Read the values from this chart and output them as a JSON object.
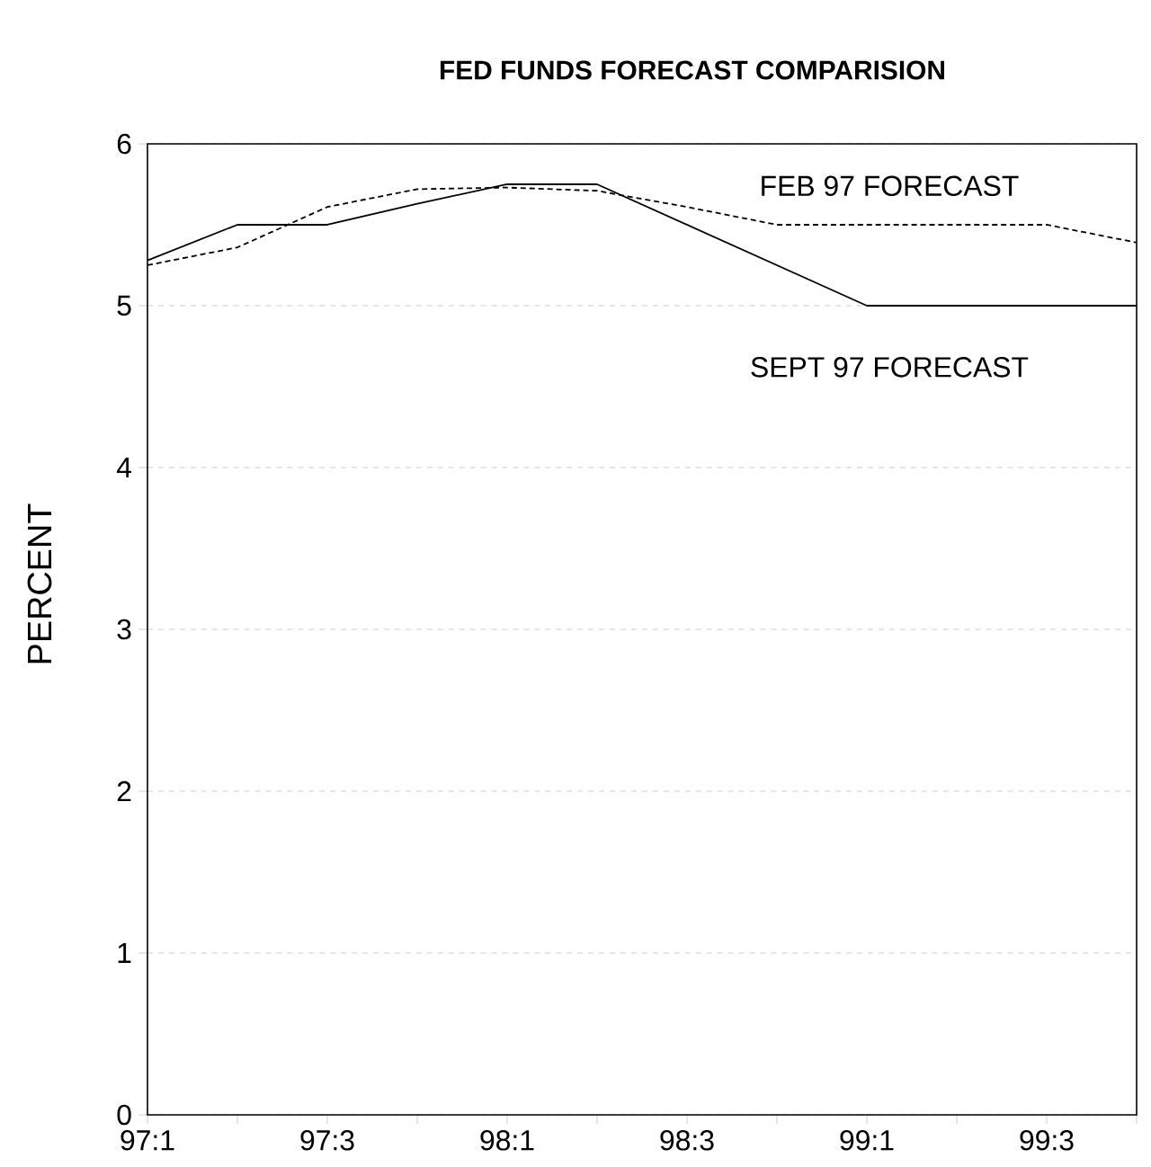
{
  "chart_data": {
    "type": "line",
    "title": "FED FUNDS FORECAST COMPARISION",
    "ylabel": "PERCENT",
    "categories": [
      "97:1",
      null,
      "97:3",
      null,
      "98:1",
      null,
      "98:3",
      null,
      "99:1",
      null,
      "99:3",
      null
    ],
    "series": [
      {
        "name": "FEB 97 FORECAST",
        "color": "#000000",
        "line_style": "dashed",
        "values": [
          5.25,
          5.36,
          5.61,
          5.72,
          5.73,
          5.71,
          5.61,
          5.5,
          5.5,
          5.5,
          5.5,
          5.39
        ]
      },
      {
        "name": "SEPT 97 FORECAST",
        "color": "#000000",
        "line_style": "solid",
        "values": [
          5.28,
          5.5,
          5.5,
          5.63,
          5.75,
          5.75,
          5.5,
          5.25,
          5.0,
          5.0,
          5.0,
          5.0
        ]
      }
    ],
    "ylim": [
      0,
      6
    ],
    "yticks": [
      0,
      1,
      2,
      3,
      4,
      5,
      6
    ],
    "grid": "y",
    "marker": "none",
    "legend": false
  }
}
